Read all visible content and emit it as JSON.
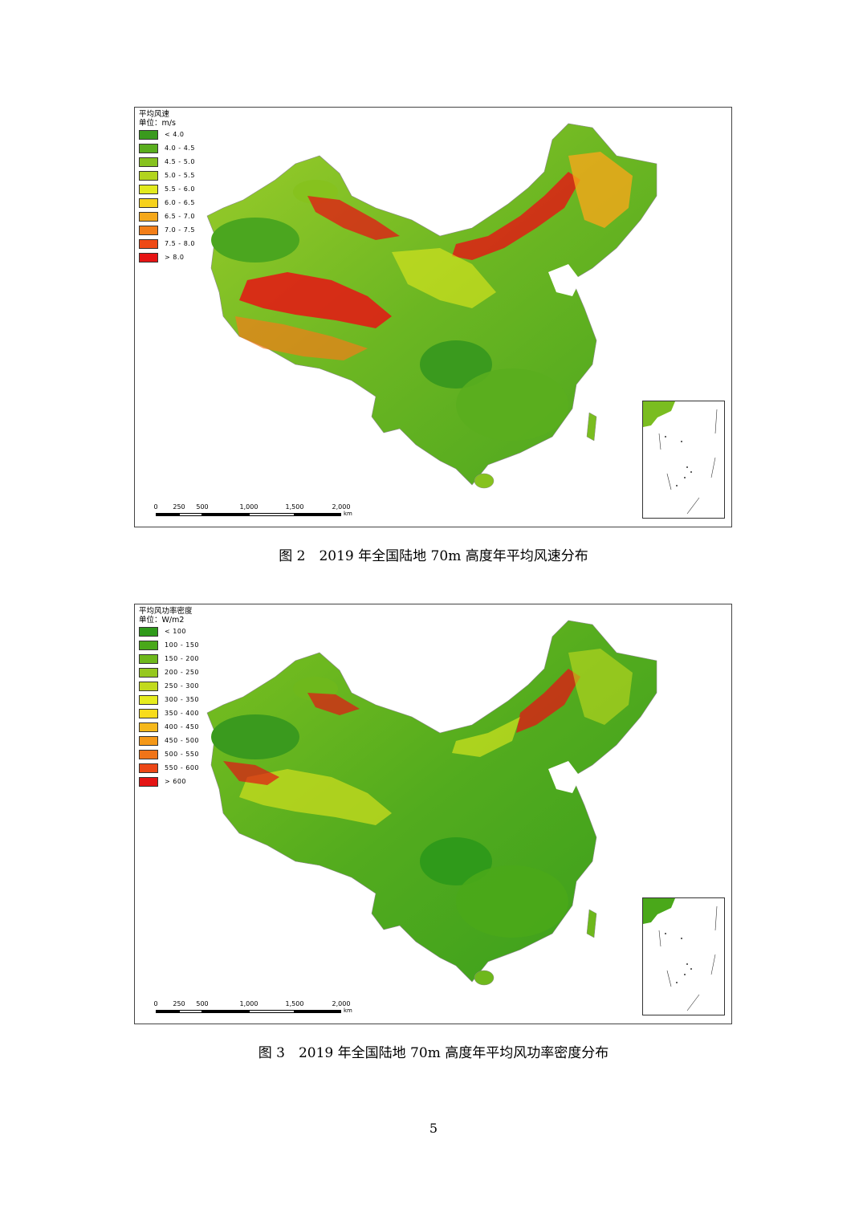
{
  "figures": [
    {
      "legend_title": "平均风速",
      "legend_unit": "单位：m/s",
      "legend": [
        {
          "label": "< 4.0",
          "color": "#3a9a1e"
        },
        {
          "label": "4.0 - 4.5",
          "color": "#5aae1e"
        },
        {
          "label": "4.5 - 5.0",
          "color": "#86c21e"
        },
        {
          "label": "5.0 - 5.5",
          "color": "#b2d41e"
        },
        {
          "label": "5.5 - 6.0",
          "color": "#e2ea1e"
        },
        {
          "label": "6.0 - 6.5",
          "color": "#f6d21c"
        },
        {
          "label": "6.5 - 7.0",
          "color": "#f5a81a"
        },
        {
          "label": "7.0 - 7.5",
          "color": "#f27e18"
        },
        {
          "label": "7.5 - 8.0",
          "color": "#ee4a16"
        },
        {
          "label": "> 8.0",
          "color": "#e61414"
        }
      ],
      "scale_labels": [
        "0",
        "250",
        "500",
        "1,000",
        "1,500",
        "2,000"
      ],
      "scale_unit": "km",
      "caption": "图 2　2019 年全国陆地 70m 高度年平均风速分布"
    },
    {
      "legend_title": "平均风功率密度",
      "legend_unit": "单位：W/m2",
      "legend": [
        {
          "label": "< 100",
          "color": "#2f9a1a"
        },
        {
          "label": "100 - 150",
          "color": "#4aa81a"
        },
        {
          "label": "150 - 200",
          "color": "#6eb81c"
        },
        {
          "label": "200 - 250",
          "color": "#96c81e"
        },
        {
          "label": "250 - 300",
          "color": "#c2da1e"
        },
        {
          "label": "300 - 350",
          "color": "#e6ec1e"
        },
        {
          "label": "350 - 400",
          "color": "#f8dc1c"
        },
        {
          "label": "400 - 450",
          "color": "#f6b81a"
        },
        {
          "label": "450 - 500",
          "color": "#f49818"
        },
        {
          "label": "500 - 550",
          "color": "#f07418"
        },
        {
          "label": "550 - 600",
          "color": "#ec4616"
        },
        {
          "label": "> 600",
          "color": "#e41414"
        }
      ],
      "scale_labels": [
        "0",
        "250",
        "500",
        "1,000",
        "1,500",
        "2,000"
      ],
      "scale_unit": "km",
      "caption": "图 3　2019 年全国陆地 70m 高度年平均风功率密度分布"
    }
  ],
  "page_number": "5"
}
